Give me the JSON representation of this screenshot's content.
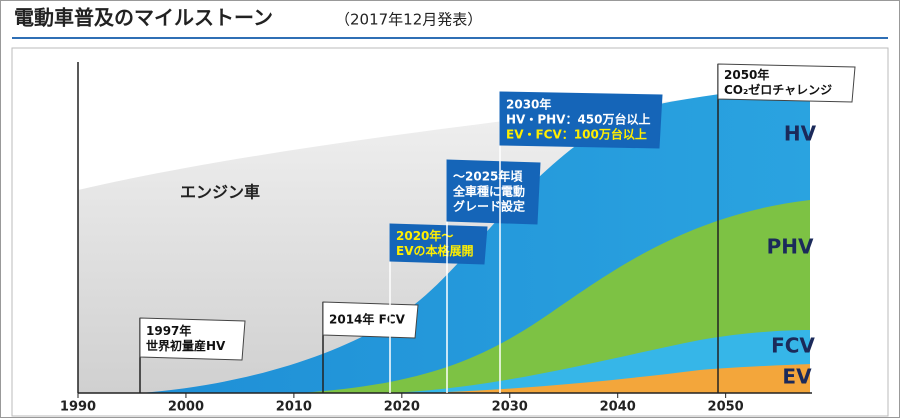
{
  "header": {
    "title": "電動車普及のマイルストーン",
    "subtitle": "（2017年12月発表）"
  },
  "chart": {
    "xlim": [
      1990,
      2058
    ],
    "xticks": [
      1990,
      2000,
      2010,
      2020,
      2030,
      2040,
      2050
    ],
    "areas": [
      "エンジン車",
      "HV",
      "PHV",
      "FCV",
      "EV"
    ],
    "flags": [
      {
        "lines": [
          "1997年",
          "世界初量産HV"
        ]
      },
      {
        "lines": [
          "2014年 FCV"
        ]
      },
      {
        "lines": [
          "2020年～",
          "EVの本格展開"
        ]
      },
      {
        "lines": [
          "～2025年頃",
          "全車種に電動",
          "グレード設定"
        ]
      },
      {
        "lines": [
          "2030年",
          "HV・PHV：450万台以上",
          "EV・FCV：100万台以上"
        ]
      },
      {
        "lines": [
          "2050年",
          "CO₂ゼロチャレンジ"
        ]
      }
    ]
  }
}
